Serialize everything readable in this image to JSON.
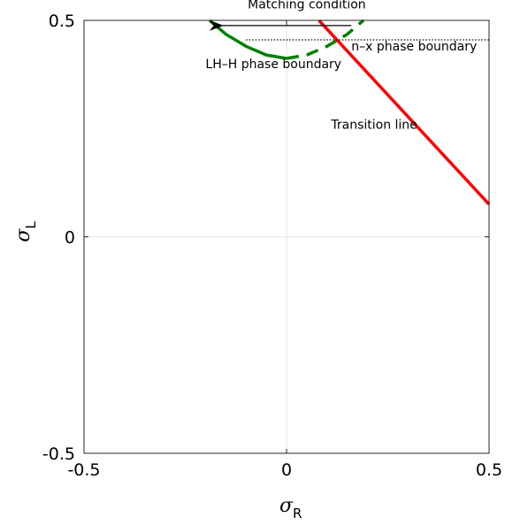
{
  "chart_data": {
    "type": "line",
    "title": "",
    "xlabel": {
      "symbol": "σ",
      "subscript": "R"
    },
    "ylabel": {
      "symbol": "σ",
      "subscript": "L"
    },
    "xlim": [
      -0.5,
      0.5
    ],
    "ylim": [
      -0.5,
      0.5
    ],
    "xticks": [
      -0.5,
      0,
      0.5
    ],
    "yticks": [
      -0.5,
      0,
      0.5
    ],
    "xtick_labels": [
      "-0.5",
      "0",
      "0.5"
    ],
    "ytick_labels": [
      "-0.5",
      "0",
      "0.5"
    ],
    "grid": "zero lines only",
    "legend": "none",
    "series": [
      {
        "color": "#008000",
        "style": "solid",
        "x": [
          -0.19,
          -0.15,
          -0.1,
          -0.05,
          0.0
        ],
        "y": [
          0.5,
          0.468,
          0.44,
          0.42,
          0.412
        ]
      },
      {
        "color": "#008000",
        "style": "dashed",
        "x": [
          0.0,
          0.05,
          0.1,
          0.15,
          0.19
        ],
        "y": [
          0.412,
          0.42,
          0.44,
          0.468,
          0.5
        ]
      },
      {
        "color": "#ff0000",
        "style": "solid",
        "x": [
          0.08,
          0.5
        ],
        "y": [
          0.5,
          0.075
        ]
      },
      {
        "color": "#000000",
        "style": "dotted",
        "x": [
          -0.1,
          0.5
        ],
        "y": [
          0.455,
          0.455
        ]
      }
    ],
    "arrow": {
      "from": [
        0.16,
        0.488
      ],
      "to": [
        -0.16,
        0.488
      ],
      "color": "#000000"
    },
    "annotations": [
      {
        "text": "Matching condition",
        "at": [
          0.05,
          0.528
        ]
      },
      {
        "text": "LH–H phase boundary",
        "at": [
          -0.2,
          0.39
        ]
      },
      {
        "text": "n–x phase boundary",
        "at": [
          0.16,
          0.43
        ]
      },
      {
        "text": "Transition line",
        "at": [
          0.11,
          0.25
        ]
      }
    ]
  }
}
